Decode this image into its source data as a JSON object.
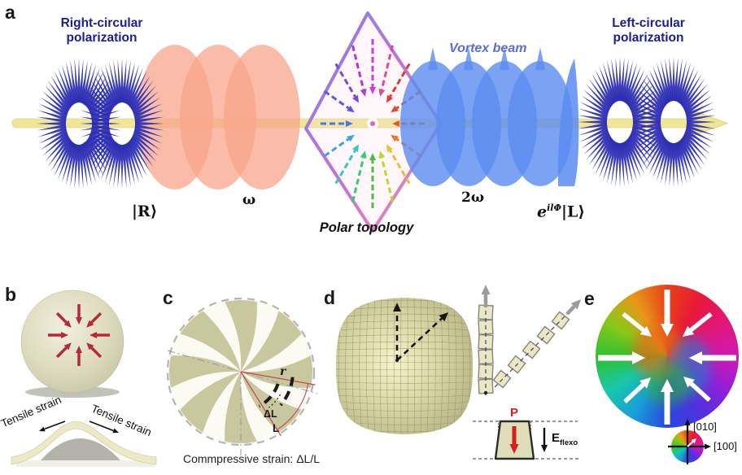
{
  "panels": {
    "a": {
      "label": "a",
      "right_circular": "Right-circular polarization",
      "vortex_beam": "Vortex beam",
      "left_circular": "Left-circular polarization",
      "omega": "ω",
      "two_omega": "2ω",
      "ket_r": "|R⟩",
      "phase_base": "e",
      "phase_sup": "ilΦ",
      "ket_l": "|L⟩",
      "polar_topology": "Polar topology"
    },
    "b": {
      "label": "b",
      "tensile_left": "Tensile strain",
      "tensile_right": "Tensile strain"
    },
    "c": {
      "label": "c",
      "radius_label": "r",
      "delta_l_label": "ΔL",
      "length_label": "L",
      "caption": "Commpressive strain: ΔL/L"
    },
    "d": {
      "label": "d",
      "polarization_label": "P",
      "field_base": "E",
      "field_sub": "flexo"
    },
    "e": {
      "label": "e",
      "axis_vertical": "[010]",
      "axis_horizontal": "[100]"
    }
  },
  "colors": {
    "navy_text": "#1c1c96",
    "vortex_text": "#5a6cd8",
    "fan_blue": "#2c2cb4",
    "beam_yellow": "#efe795",
    "beam_edge": "#d8ca70",
    "fundamental_disk": "#f8a58b",
    "second_harmonic_disk": "#5b8cf0",
    "red_arrow": "#b5293a",
    "olive": "#c6c499",
    "dome_khaki": "#c9c795",
    "flexo_red": "#d42020",
    "gray_arrow": "#9b9b9b",
    "polar_arrows": [
      "#d838d8",
      "#e04898",
      "#e03838",
      "#e04830",
      "#e05828",
      "#e87828",
      "#e8c030",
      "#b8d838",
      "#48c048",
      "#38c878",
      "#30c8c0",
      "#38a8d8",
      "#4878e0",
      "#5858e0",
      "#7848d8",
      "#b038d8"
    ],
    "vector_map_conic": [
      "#e84018",
      "#e81838",
      "#e0187a",
      "#d018b0",
      "#9020d8",
      "#5030e0",
      "#2848e0",
      "#18a0d8",
      "#18c8a8",
      "#30c030",
      "#88c818",
      "#e89818",
      "#e84018"
    ]
  }
}
